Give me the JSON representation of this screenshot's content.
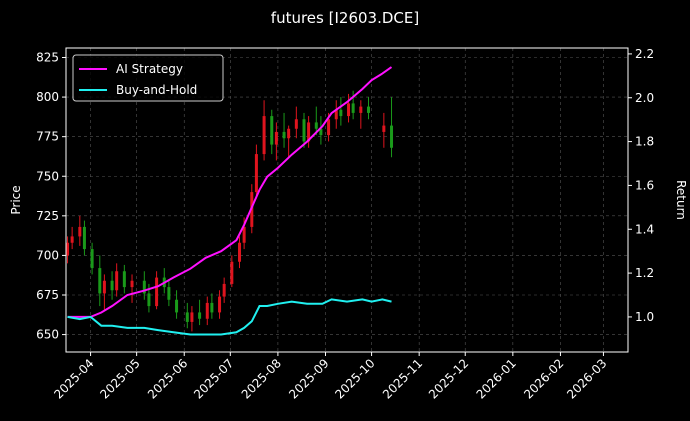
{
  "chart_data": {
    "type": "candlestick",
    "title": "futures [I2603.DCE]",
    "ylabel": "Price",
    "y2label": "Return",
    "xlim": [
      "2025-03-16",
      "2026-03-17"
    ],
    "xticks": [
      "2025-04",
      "2025-05",
      "2025-06",
      "2025-07",
      "2025-08",
      "2025-09",
      "2025-10",
      "2025-11",
      "2025-12",
      "2026-01",
      "2026-02",
      "2026-03"
    ],
    "ylim": [
      639,
      831
    ],
    "yticks": [
      650,
      675,
      700,
      725,
      750,
      775,
      800,
      825
    ],
    "y2lim": [
      0.84,
      2.227
    ],
    "y2ticks": [
      {
        "value": 1,
        "label": "1.0"
      },
      1.2,
      1.4,
      1.6,
      1.8,
      {
        "value": 2,
        "label": "2.0"
      },
      2.2
    ],
    "grid": true,
    "legend": "upper left",
    "up_color": "#e0141e",
    "down_color": "#1a9a1a",
    "candles": {
      "x": [
        "2025-03-17",
        "2025-03-20",
        "2025-03-25",
        "2025-03-28",
        "2025-04-02",
        "2025-04-07",
        "2025-04-10",
        "2025-04-15",
        "2025-04-18",
        "2025-04-23",
        "2025-04-28",
        "2025-05-06",
        "2025-05-09",
        "2025-05-14",
        "2025-05-19",
        "2025-05-22",
        "2025-05-27",
        "2025-06-03",
        "2025-06-06",
        "2025-06-11",
        "2025-06-16",
        "2025-06-19",
        "2025-06-24",
        "2025-06-27",
        "2025-07-02",
        "2025-07-07",
        "2025-07-10",
        "2025-07-15",
        "2025-07-18",
        "2025-07-23",
        "2025-07-28",
        "2025-07-31",
        "2025-08-05",
        "2025-08-08",
        "2025-08-13",
        "2025-08-18",
        "2025-08-21",
        "2025-08-26",
        "2025-08-29",
        "2025-09-03",
        "2025-09-08",
        "2025-09-11",
        "2025-09-16",
        "2025-09-19",
        "2025-09-24",
        "2025-09-29",
        "2025-10-09",
        "2025-10-14"
      ],
      "open": [
        700,
        708,
        712,
        718,
        704,
        692,
        676,
        684,
        678,
        690,
        680,
        684,
        676,
        668,
        686,
        680,
        672,
        664,
        658,
        664,
        660,
        670,
        664,
        674,
        682,
        696,
        708,
        718,
        740,
        764,
        788,
        770,
        778,
        774,
        780,
        786,
        772,
        784,
        780,
        776,
        786,
        792,
        788,
        796,
        790,
        794,
        778,
        782
      ],
      "high": [
        712,
        718,
        725,
        722,
        708,
        700,
        688,
        690,
        695,
        694,
        688,
        690,
        682,
        690,
        692,
        684,
        678,
        670,
        668,
        672,
        674,
        676,
        678,
        686,
        700,
        712,
        724,
        745,
        770,
        798,
        792,
        784,
        790,
        782,
        794,
        790,
        788,
        794,
        788,
        790,
        798,
        800,
        802,
        804,
        798,
        800,
        790,
        800
      ],
      "low": [
        695,
        704,
        706,
        700,
        688,
        668,
        665,
        672,
        674,
        676,
        670,
        672,
        664,
        666,
        676,
        668,
        660,
        654,
        652,
        656,
        656,
        660,
        660,
        670,
        680,
        692,
        704,
        714,
        736,
        760,
        764,
        760,
        768,
        762,
        774,
        768,
        768,
        776,
        770,
        772,
        780,
        782,
        784,
        786,
        780,
        786,
        768,
        762
      ],
      "close": [
        708,
        712,
        718,
        704,
        692,
        676,
        684,
        678,
        690,
        680,
        684,
        676,
        668,
        686,
        680,
        672,
        664,
        658,
        664,
        660,
        670,
        664,
        674,
        682,
        696,
        708,
        718,
        740,
        764,
        788,
        770,
        778,
        774,
        780,
        786,
        772,
        784,
        780,
        776,
        786,
        792,
        788,
        796,
        790,
        794,
        790,
        782,
        768
      ]
    },
    "series": [
      {
        "name": "AI Strategy",
        "color": "#ff10ff",
        "axis": "y2",
        "x": [
          "2025-03-17",
          "2025-03-25",
          "2025-04-01",
          "2025-04-08",
          "2025-04-15",
          "2025-04-25",
          "2025-05-06",
          "2025-05-15",
          "2025-05-25",
          "2025-06-05",
          "2025-06-15",
          "2025-06-25",
          "2025-07-05",
          "2025-07-10",
          "2025-07-15",
          "2025-07-20",
          "2025-07-25",
          "2025-08-01",
          "2025-08-10",
          "2025-08-20",
          "2025-08-30",
          "2025-09-05",
          "2025-09-15",
          "2025-09-25",
          "2025-10-01",
          "2025-10-08",
          "2025-10-14"
        ],
        "values": [
          1.0,
          1.0,
          1.0,
          1.02,
          1.05,
          1.1,
          1.12,
          1.14,
          1.18,
          1.22,
          1.27,
          1.3,
          1.35,
          1.42,
          1.5,
          1.58,
          1.64,
          1.68,
          1.74,
          1.8,
          1.87,
          1.93,
          1.98,
          2.04,
          2.08,
          2.11,
          2.14
        ]
      },
      {
        "name": "Buy-and-Hold",
        "color": "#20f0f0",
        "axis": "y2",
        "x": [
          "2025-03-17",
          "2025-03-25",
          "2025-04-01",
          "2025-04-08",
          "2025-04-15",
          "2025-04-25",
          "2025-05-06",
          "2025-05-15",
          "2025-05-25",
          "2025-06-05",
          "2025-06-15",
          "2025-06-25",
          "2025-07-05",
          "2025-07-10",
          "2025-07-15",
          "2025-07-20",
          "2025-07-25",
          "2025-08-01",
          "2025-08-10",
          "2025-08-20",
          "2025-08-30",
          "2025-09-05",
          "2025-09-15",
          "2025-09-25",
          "2025-10-01",
          "2025-10-08",
          "2025-10-14"
        ],
        "values": [
          1.0,
          0.99,
          1.0,
          0.96,
          0.96,
          0.95,
          0.95,
          0.94,
          0.93,
          0.92,
          0.92,
          0.92,
          0.93,
          0.95,
          0.98,
          1.05,
          1.05,
          1.06,
          1.07,
          1.06,
          1.06,
          1.08,
          1.07,
          1.08,
          1.07,
          1.08,
          1.07
        ]
      }
    ]
  }
}
